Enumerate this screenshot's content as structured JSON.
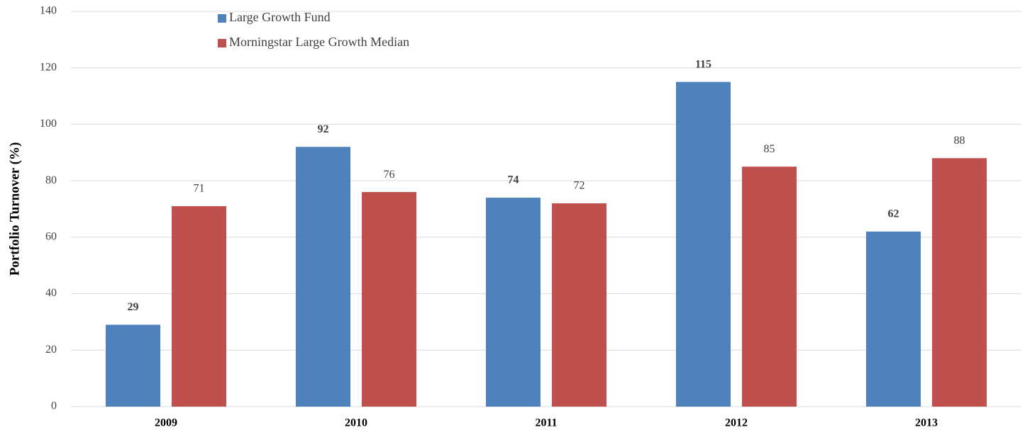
{
  "chart_data": {
    "type": "bar",
    "y_label": "Portfolio Turnover (%)",
    "categories": [
      "2009",
      "2010",
      "2011",
      "2012",
      "2013"
    ],
    "series": [
      {
        "name": "Large Growth Fund",
        "color": "#4f81bd",
        "values": [
          29,
          92,
          74,
          115,
          62
        ]
      },
      {
        "name": "Morningstar Large Growth Median",
        "color": "#c0504d",
        "values": [
          71,
          76,
          72,
          85,
          88
        ]
      }
    ],
    "ylim": [
      0,
      140
    ],
    "yticks": [
      0,
      20,
      40,
      60,
      80,
      100,
      120,
      140
    ],
    "grid": true
  }
}
